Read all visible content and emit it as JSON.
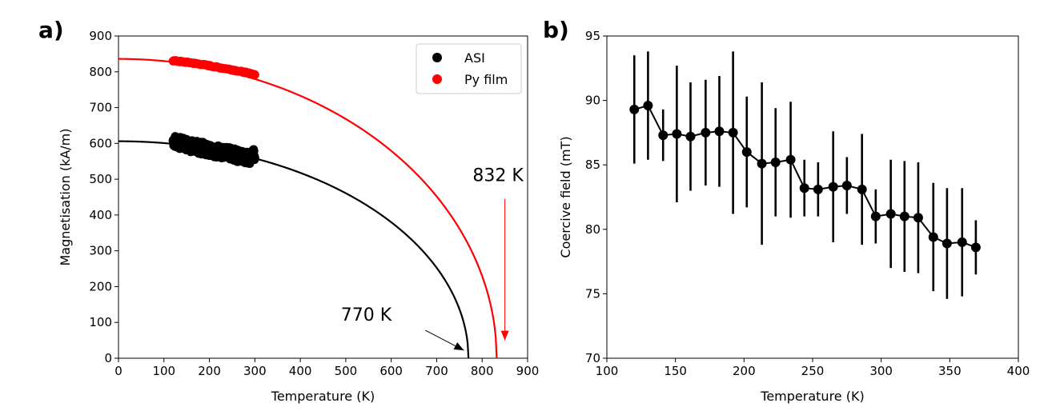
{
  "chart_data": [
    {
      "panel_label": "a)",
      "type": "scatter",
      "xlabel": "Temperature (K)",
      "ylabel": "Magnetisation (kA/m)",
      "xlim": [
        0,
        900
      ],
      "ylim": [
        0,
        900
      ],
      "xticks": [
        0,
        100,
        200,
        300,
        400,
        500,
        600,
        700,
        800,
        900
      ],
      "yticks": [
        0,
        100,
        200,
        300,
        400,
        500,
        600,
        700,
        800,
        900
      ],
      "grid": false,
      "legend": {
        "location": "top-right",
        "entries": [
          {
            "label": "ASI",
            "color": "#000000"
          },
          {
            "label": "Py film",
            "color": "#ff0000"
          }
        ]
      },
      "series": [
        {
          "name": "ASI",
          "kind": "points",
          "color": "#000000",
          "x_range": [
            120,
            300
          ],
          "values_approx": [
            [
              120,
              608
            ],
            [
              130,
              604
            ],
            [
              140,
              598
            ],
            [
              150,
              596
            ],
            [
              160,
              592
            ],
            [
              170,
              590
            ],
            [
              180,
              588
            ],
            [
              190,
              585
            ],
            [
              200,
              583
            ],
            [
              210,
              580
            ],
            [
              220,
              578
            ],
            [
              230,
              575
            ],
            [
              240,
              572
            ],
            [
              250,
              570
            ],
            [
              260,
              566
            ],
            [
              270,
              564
            ],
            [
              280,
              562
            ],
            [
              290,
              560
            ],
            [
              300,
              570
            ]
          ],
          "spread": 25
        },
        {
          "name": "Py film",
          "kind": "points",
          "color": "#ff0000",
          "x_range": [
            120,
            300
          ],
          "values_approx": [
            [
              120,
              831
            ],
            [
              140,
              828
            ],
            [
              160,
              825
            ],
            [
              180,
              821
            ],
            [
              200,
              817
            ],
            [
              220,
              812
            ],
            [
              240,
              808
            ],
            [
              260,
              803
            ],
            [
              280,
              798
            ],
            [
              300,
              792
            ]
          ]
        },
        {
          "name": "ASI fit",
          "kind": "line",
          "color": "#000000",
          "Ms0": 606,
          "Tc": 770,
          "model": "M0*(1-(T/Tc)^2)^0.5"
        },
        {
          "name": "Py film fit",
          "kind": "line",
          "color": "#ff0000",
          "Ms0": 836,
          "Tc": 832,
          "model": "M0*(1-(T/Tc)^2)^0.5"
        }
      ],
      "annotations": [
        {
          "text": "770 K",
          "text_at": [
            545,
            105
          ],
          "arrow_to": [
            760,
            22
          ],
          "arrow_from": [
            675,
            78
          ],
          "color": "#000000"
        },
        {
          "text": "832 K",
          "text_at": [
            835,
            495
          ],
          "arrow_from": [
            850,
            445
          ],
          "arrow_to": [
            850,
            50
          ],
          "color": "#ff0000"
        }
      ]
    },
    {
      "panel_label": "b)",
      "type": "line",
      "xlabel": "Temperature (K)",
      "ylabel": "Coercive field (mT)",
      "xlim": [
        100,
        400
      ],
      "ylim": [
        70,
        95
      ],
      "xticks": [
        100,
        150,
        200,
        250,
        300,
        350,
        400
      ],
      "yticks": [
        70,
        75,
        80,
        85,
        90,
        95
      ],
      "grid": false,
      "series": [
        {
          "name": "Coercive field",
          "color": "#000000",
          "x": [
            120,
            130,
            141,
            151,
            161,
            172,
            182,
            192,
            202,
            213,
            223,
            234,
            244,
            254,
            265,
            275,
            286,
            296,
            307,
            317,
            327,
            338,
            348,
            359,
            369
          ],
          "y": [
            89.3,
            89.6,
            87.3,
            87.4,
            87.2,
            87.5,
            87.6,
            87.5,
            86.0,
            85.1,
            85.2,
            85.4,
            83.2,
            83.1,
            83.3,
            83.4,
            83.1,
            81.0,
            81.2,
            81.0,
            80.9,
            79.4,
            78.9,
            79.0,
            78.6
          ],
          "yerr": [
            4.2,
            4.2,
            2.0,
            5.3,
            4.2,
            4.1,
            4.3,
            6.3,
            4.3,
            6.3,
            4.2,
            4.5,
            2.2,
            2.1,
            4.3,
            2.2,
            4.3,
            2.1,
            4.2,
            4.3,
            4.3,
            4.2,
            4.3,
            4.2,
            2.1
          ]
        }
      ]
    }
  ]
}
